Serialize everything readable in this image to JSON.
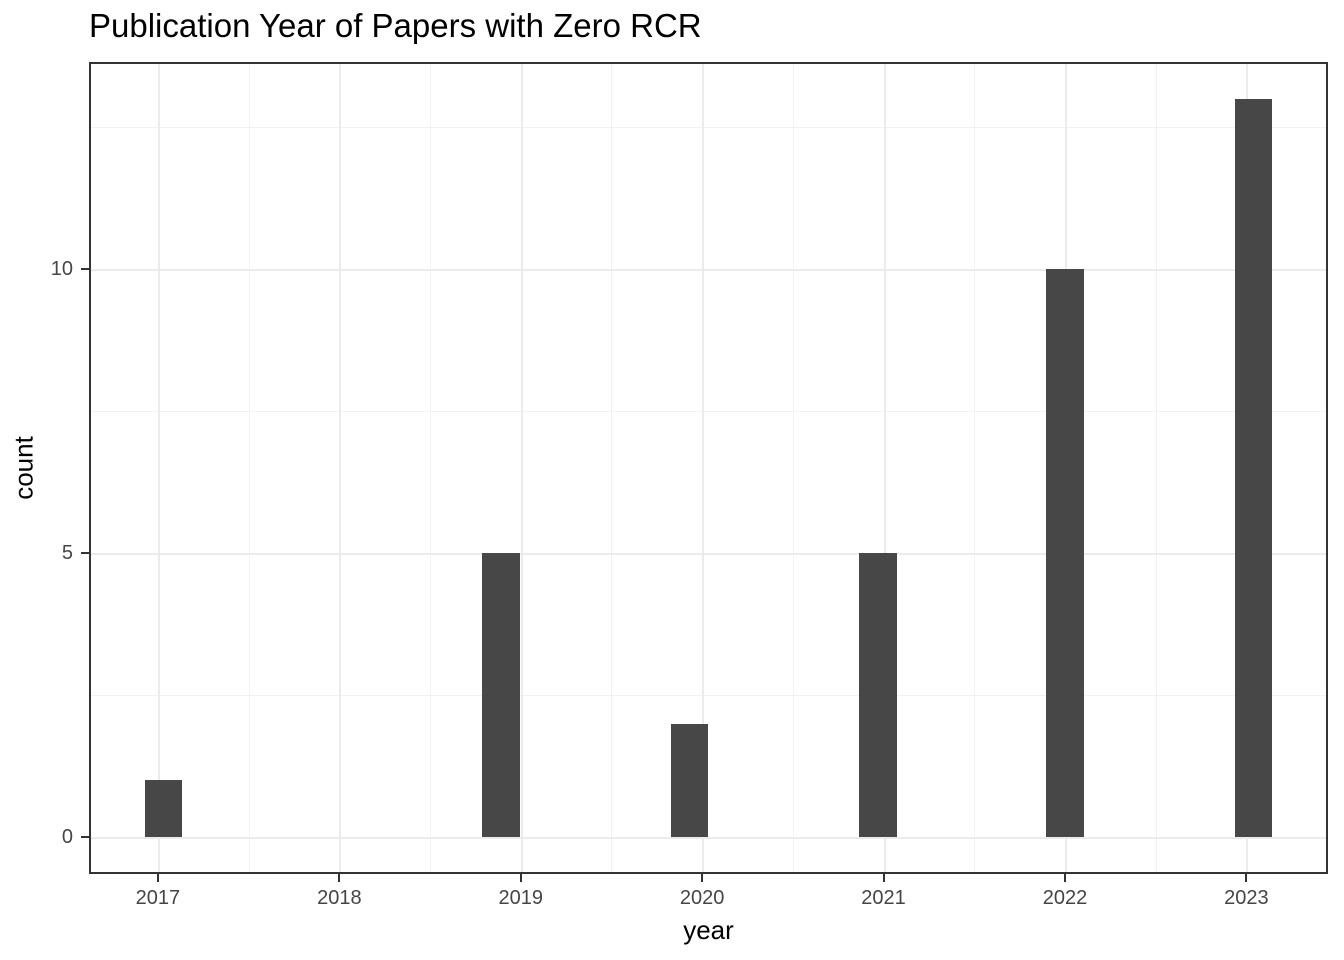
{
  "title": "Publication Year of Papers with Zero RCR",
  "chart_data": {
    "type": "bar",
    "subtype": "histogram",
    "title": "Publication Year of Papers with Zero RCR",
    "xlabel": "year",
    "ylabel": "count",
    "categories": [
      2017,
      2018,
      2019,
      2020,
      2021,
      2022,
      2023
    ],
    "values": [
      1,
      0,
      5,
      2,
      5,
      10,
      13
    ],
    "x_tick_labels": [
      "2017",
      "2018",
      "2019",
      "2020",
      "2021",
      "2022",
      "2023"
    ],
    "y_tick_labels": [
      "0",
      "5",
      "10"
    ],
    "y_tick_values": [
      0,
      5,
      10
    ],
    "y_minor_values": [
      2.5,
      7.5,
      12.5
    ],
    "xlim": [
      2016.62,
      2023.45
    ],
    "ylim": [
      -0.65,
      13.65
    ],
    "bar_width": 0.207,
    "bars": [
      {
        "bin_center": 2017.03,
        "count": 1
      },
      {
        "bin_center": 2018.89,
        "count": 5
      },
      {
        "bin_center": 2019.93,
        "count": 2
      },
      {
        "bin_center": 2020.97,
        "count": 5
      },
      {
        "bin_center": 2022.0,
        "count": 10
      },
      {
        "bin_center": 2023.04,
        "count": 13
      }
    ],
    "grid": true,
    "legend": false
  },
  "colors": {
    "bar_fill": "#474747",
    "panel_border": "#333333",
    "grid_major": "#EBEBEB",
    "grid_minor": "#F1F1F1",
    "tick_label": "#454545",
    "tick_mark": "#333333",
    "title": "#000000",
    "axis_title": "#000000",
    "background": "#FFFFFF"
  }
}
